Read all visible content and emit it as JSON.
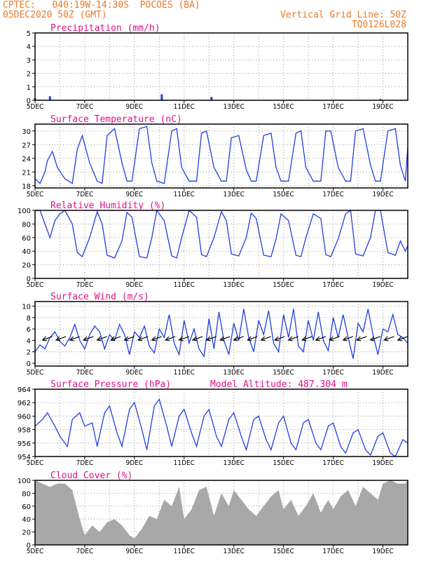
{
  "header": {
    "line1": "CPTEC:   040:19W-14:30S  POCOES (BA)",
    "line2": "05DEC2020 50Z (GMT)",
    "grid_note": "Vertical Grid Line: 50Z",
    "code": "TQ0126L028",
    "model_altitude": "Model Altitude: 487.304 m"
  },
  "colors": {
    "title": "#e87a28",
    "panel_title": "#e0118a",
    "series": "#2040e0",
    "cloud": "#a8a8a8",
    "grid": "#999999"
  },
  "chart_data": [
    {
      "type": "bar",
      "title": "Precipitation (mm/h)",
      "ylim": [
        0,
        5
      ],
      "yticks": [
        "0",
        "1",
        "2",
        "3",
        "4",
        "5"
      ],
      "xticks": [
        "5DEC",
        "7DEC",
        "9DEC",
        "11DEC",
        "13DEC",
        "15DEC",
        "17DEC",
        "19DEC"
      ],
      "xlim_days": [
        5,
        20.0
      ],
      "x": [
        5.0,
        5.6,
        10.1,
        12.1,
        18.9
      ],
      "values": [
        0.15,
        0.3,
        0.45,
        0.25,
        0.1
      ]
    },
    {
      "type": "line",
      "title": "Surface Temperature (nC)",
      "ylim": [
        17.5,
        31.5
      ],
      "yticks": [
        "18",
        "21",
        "24",
        "27",
        "30"
      ],
      "xticks": [
        "5DEC",
        "7DEC",
        "9DEC",
        "11DEC",
        "13DEC",
        "15DEC",
        "17DEC",
        "19DEC"
      ],
      "xlim_days": [
        5,
        20.0
      ],
      "series": [
        {
          "name": "temperature",
          "x": [
            5.0,
            5.2,
            5.4,
            5.5,
            5.7,
            5.9,
            6.2,
            6.5,
            6.7,
            6.9,
            7.2,
            7.5,
            7.7,
            7.9,
            8.2,
            8.5,
            8.7,
            8.9,
            9.2,
            9.5,
            9.7,
            9.9,
            10.2,
            10.5,
            10.7,
            10.9,
            11.2,
            11.5,
            11.7,
            11.9,
            12.2,
            12.5,
            12.7,
            12.9,
            13.2,
            13.5,
            13.7,
            13.9,
            14.2,
            14.5,
            14.7,
            14.9,
            15.2,
            15.5,
            15.7,
            15.9,
            16.2,
            16.5,
            16.7,
            16.9,
            17.2,
            17.5,
            17.7,
            17.9,
            18.2,
            18.5,
            18.7,
            18.9,
            19.2,
            19.5,
            19.7,
            19.9,
            20.0
          ],
          "values": [
            19.5,
            18.5,
            21,
            23.5,
            25.5,
            22,
            19.5,
            18.5,
            26,
            29,
            23,
            19,
            18.5,
            29,
            30.5,
            23,
            19,
            19,
            30.5,
            31,
            23,
            19,
            18.5,
            30,
            30.5,
            22,
            19,
            19,
            29.5,
            30,
            22,
            19,
            19,
            28.5,
            29,
            21.5,
            19,
            19,
            29,
            29.5,
            22,
            19,
            19,
            29.5,
            30,
            22,
            19,
            19,
            30,
            30,
            22,
            19,
            19,
            30,
            30.5,
            22.5,
            19,
            19,
            30,
            30.5,
            22.5,
            19,
            26.5
          ]
        }
      ]
    },
    {
      "type": "line",
      "title": "Relative Humidity (%)",
      "ylim": [
        0,
        100
      ],
      "yticks": [
        "0",
        "20",
        "40",
        "60",
        "80",
        "100"
      ],
      "xticks": [
        "5DEC",
        "7DEC",
        "9DEC",
        "11DEC",
        "13DEC",
        "15DEC",
        "17DEC",
        "19DEC"
      ],
      "xlim_days": [
        5,
        20.0
      ],
      "series": [
        {
          "name": "humidity",
          "x": [
            5.0,
            5.2,
            5.4,
            5.6,
            5.8,
            6.0,
            6.2,
            6.5,
            6.7,
            6.9,
            7.2,
            7.5,
            7.7,
            7.9,
            8.2,
            8.5,
            8.7,
            8.9,
            9.2,
            9.5,
            9.7,
            9.9,
            10.2,
            10.5,
            10.7,
            10.9,
            11.2,
            11.5,
            11.7,
            11.9,
            12.2,
            12.5,
            12.7,
            12.9,
            13.2,
            13.5,
            13.7,
            13.9,
            14.2,
            14.5,
            14.7,
            14.9,
            15.2,
            15.5,
            15.7,
            15.9,
            16.2,
            16.5,
            16.7,
            16.9,
            17.2,
            17.5,
            17.7,
            17.9,
            18.2,
            18.5,
            18.7,
            18.9,
            19.2,
            19.5,
            19.7,
            19.9,
            20.0
          ],
          "values": [
            100,
            100,
            80,
            60,
            85,
            95,
            100,
            80,
            38,
            32,
            60,
            98,
            80,
            34,
            30,
            55,
            97,
            90,
            32,
            30,
            60,
            100,
            85,
            33,
            30,
            60,
            100,
            90,
            35,
            32,
            60,
            98,
            85,
            36,
            33,
            60,
            96,
            88,
            34,
            32,
            58,
            95,
            85,
            34,
            32,
            60,
            95,
            88,
            35,
            32,
            58,
            95,
            100,
            36,
            33,
            60,
            100,
            100,
            38,
            34,
            55,
            40,
            48
          ]
        }
      ]
    },
    {
      "type": "line",
      "title": "Surface Wind (m/s)",
      "ylim": [
        -0.5,
        10.8
      ],
      "yticks": [
        "0",
        "2",
        "4",
        "6",
        "8",
        "10"
      ],
      "xticks": [
        "5DEC",
        "7DEC",
        "9DEC",
        "11DEC",
        "13DEC",
        "15DEC",
        "17DEC",
        "19DEC"
      ],
      "xlim_days": [
        5,
        20.0
      ],
      "series": [
        {
          "name": "wind speed",
          "x": [
            5.0,
            5.2,
            5.4,
            5.6,
            5.8,
            6.0,
            6.2,
            6.4,
            6.6,
            6.8,
            7.0,
            7.2,
            7.4,
            7.6,
            7.8,
            8.0,
            8.2,
            8.4,
            8.6,
            8.8,
            9.0,
            9.2,
            9.4,
            9.6,
            9.8,
            10.0,
            10.2,
            10.4,
            10.6,
            10.8,
            11.0,
            11.2,
            11.4,
            11.6,
            11.8,
            12.0,
            12.2,
            12.4,
            12.6,
            12.8,
            13.0,
            13.2,
            13.4,
            13.6,
            13.8,
            14.0,
            14.2,
            14.4,
            14.6,
            14.8,
            15.0,
            15.2,
            15.4,
            15.6,
            15.8,
            16.0,
            16.2,
            16.4,
            16.6,
            16.8,
            17.0,
            17.2,
            17.4,
            17.6,
            17.8,
            18.0,
            18.2,
            18.4,
            18.6,
            18.8,
            19.0,
            19.2,
            19.4,
            19.6,
            19.8,
            20.0
          ],
          "values": [
            2.0,
            3.2,
            2.5,
            4.5,
            5.5,
            3.8,
            3.0,
            4.5,
            6.8,
            4.0,
            2.5,
            5.0,
            6.5,
            5.5,
            2.5,
            5.0,
            4.0,
            6.8,
            5.0,
            1.5,
            5.5,
            4.5,
            6.5,
            3.0,
            1.8,
            6.0,
            4.5,
            8.5,
            3.5,
            1.5,
            7.5,
            3.5,
            6.0,
            2.5,
            1.2,
            7.8,
            2.5,
            9.0,
            4.0,
            1.5,
            7.0,
            4.0,
            9.5,
            4.5,
            2.0,
            7.5,
            5.0,
            9.2,
            3.5,
            2.0,
            8.5,
            4.5,
            9.5,
            3.0,
            2.0,
            7.5,
            4.0,
            9.0,
            4.0,
            2.2,
            8.0,
            4.5,
            8.5,
            4.5,
            0.8,
            7.0,
            5.5,
            9.5,
            5.0,
            1.5,
            6.0,
            5.5,
            8.5,
            5.0,
            4.5,
            3.5
          ]
        }
      ]
    },
    {
      "type": "line",
      "title": "Surface Pressure (hPa)",
      "ylim": [
        954,
        964
      ],
      "yticks": [
        "954",
        "956",
        "958",
        "960",
        "962",
        "964"
      ],
      "xticks": [
        "5DEC",
        "7DEC",
        "9DEC",
        "11DEC",
        "13DEC",
        "15DEC",
        "17DEC",
        "19DEC"
      ],
      "xlim_days": [
        5,
        20.0
      ],
      "series": [
        {
          "name": "pressure",
          "x": [
            5.0,
            5.3,
            5.5,
            5.8,
            6.0,
            6.3,
            6.5,
            6.8,
            7.0,
            7.3,
            7.5,
            7.8,
            8.0,
            8.3,
            8.5,
            8.8,
            9.0,
            9.3,
            9.5,
            9.8,
            10.0,
            10.3,
            10.5,
            10.8,
            11.0,
            11.3,
            11.5,
            11.8,
            12.0,
            12.3,
            12.5,
            12.8,
            13.0,
            13.3,
            13.5,
            13.8,
            14.0,
            14.3,
            14.5,
            14.8,
            15.0,
            15.3,
            15.5,
            15.8,
            16.0,
            16.3,
            16.5,
            16.8,
            17.0,
            17.3,
            17.5,
            17.8,
            18.0,
            18.3,
            18.5,
            18.8,
            19.0,
            19.3,
            19.5,
            19.8,
            20.0
          ],
          "values": [
            958.5,
            959.5,
            960.5,
            958.5,
            957,
            955.5,
            959.5,
            960.5,
            958.5,
            959,
            955.5,
            960.5,
            961.5,
            957.5,
            955.5,
            961,
            962,
            958,
            955,
            961.5,
            962.5,
            958.5,
            955.5,
            960,
            961,
            957.5,
            955.5,
            960,
            961,
            957,
            955.5,
            959.5,
            960.5,
            957,
            955,
            959.5,
            960,
            956.5,
            955,
            959,
            960,
            956,
            955,
            959,
            959.5,
            956,
            955,
            958.5,
            959,
            955.5,
            954.5,
            957.5,
            958,
            955,
            954.2,
            957,
            957.5,
            954.5,
            954,
            956.5,
            956
          ]
        }
      ]
    },
    {
      "type": "area",
      "title": "Cloud Cover (%)",
      "ylim": [
        0,
        100
      ],
      "yticks": [
        "0",
        "20",
        "40",
        "60",
        "80",
        "100"
      ],
      "xticks": [
        "5DEC",
        "7DEC",
        "9DEC",
        "11DEC",
        "13DEC",
        "15DEC",
        "17DEC",
        "19DEC"
      ],
      "xlim_days": [
        5,
        20.0
      ],
      "x": [
        5.0,
        5.3,
        5.6,
        5.9,
        6.2,
        6.5,
        6.8,
        7.0,
        7.3,
        7.6,
        7.9,
        8.2,
        8.5,
        8.8,
        9.0,
        9.3,
        9.6,
        9.9,
        10.2,
        10.5,
        10.8,
        11.0,
        11.3,
        11.6,
        11.9,
        12.2,
        12.5,
        12.8,
        13.0,
        13.3,
        13.6,
        13.9,
        14.2,
        14.5,
        14.8,
        15.0,
        15.3,
        15.6,
        15.9,
        16.2,
        16.5,
        16.8,
        17.0,
        17.3,
        17.6,
        17.9,
        18.2,
        18.5,
        18.8,
        19.0,
        19.3,
        19.6,
        19.9,
        20.0
      ],
      "values": [
        100,
        95,
        90,
        95,
        95,
        85,
        40,
        15,
        30,
        20,
        35,
        40,
        30,
        15,
        10,
        25,
        45,
        40,
        70,
        60,
        90,
        40,
        55,
        85,
        90,
        45,
        80,
        60,
        85,
        70,
        55,
        45,
        60,
        75,
        85,
        55,
        70,
        45,
        60,
        80,
        50,
        70,
        55,
        75,
        85,
        60,
        90,
        80,
        70,
        95,
        100,
        95,
        95,
        100
      ]
    }
  ]
}
